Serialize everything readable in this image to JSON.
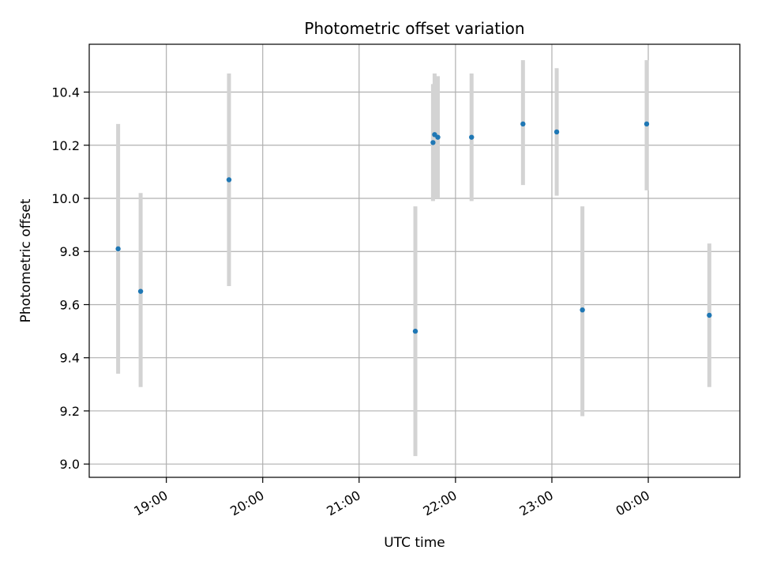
{
  "chart_data": {
    "type": "scatter",
    "title": "Photometric offset variation",
    "xlabel": "UTC time",
    "ylabel": "Photometric offset",
    "ylim": [
      8.95,
      10.58
    ],
    "xlim": [
      "18:12",
      "00:57"
    ],
    "grid": true,
    "errorbar_color": "#d3d3d3",
    "point_color": "#1f77b4",
    "x_ticks": [
      "19:00",
      "20:00",
      "21:00",
      "22:00",
      "23:00",
      "00:00"
    ],
    "y_ticks": [
      "9.0",
      "9.2",
      "9.4",
      "9.6",
      "9.8",
      "10.0",
      "10.2",
      "10.4"
    ],
    "points": [
      {
        "x": "18:30",
        "y": 9.81,
        "err_low": 9.34,
        "err_high": 10.28
      },
      {
        "x": "18:44",
        "y": 9.65,
        "err_low": 9.29,
        "err_high": 10.02
      },
      {
        "x": "19:39",
        "y": 10.07,
        "err_low": 9.67,
        "err_high": 10.47
      },
      {
        "x": "21:35",
        "y": 9.5,
        "err_low": 9.03,
        "err_high": 9.97
      },
      {
        "x": "21:46",
        "y": 10.21,
        "err_low": 9.99,
        "err_high": 10.43
      },
      {
        "x": "21:47",
        "y": 10.24,
        "err_low": 10.0,
        "err_high": 10.47
      },
      {
        "x": "21:49",
        "y": 10.23,
        "err_low": 10.0,
        "err_high": 10.46
      },
      {
        "x": "22:10",
        "y": 10.23,
        "err_low": 9.99,
        "err_high": 10.47
      },
      {
        "x": "22:42",
        "y": 10.28,
        "err_low": 10.05,
        "err_high": 10.52
      },
      {
        "x": "23:03",
        "y": 10.25,
        "err_low": 10.01,
        "err_high": 10.49
      },
      {
        "x": "23:19",
        "y": 9.58,
        "err_low": 9.18,
        "err_high": 9.97
      },
      {
        "x": "23:59",
        "y": 10.28,
        "err_low": 10.03,
        "err_high": 10.52
      },
      {
        "x": "00:38",
        "y": 9.56,
        "err_low": 9.29,
        "err_high": 9.83
      }
    ]
  }
}
